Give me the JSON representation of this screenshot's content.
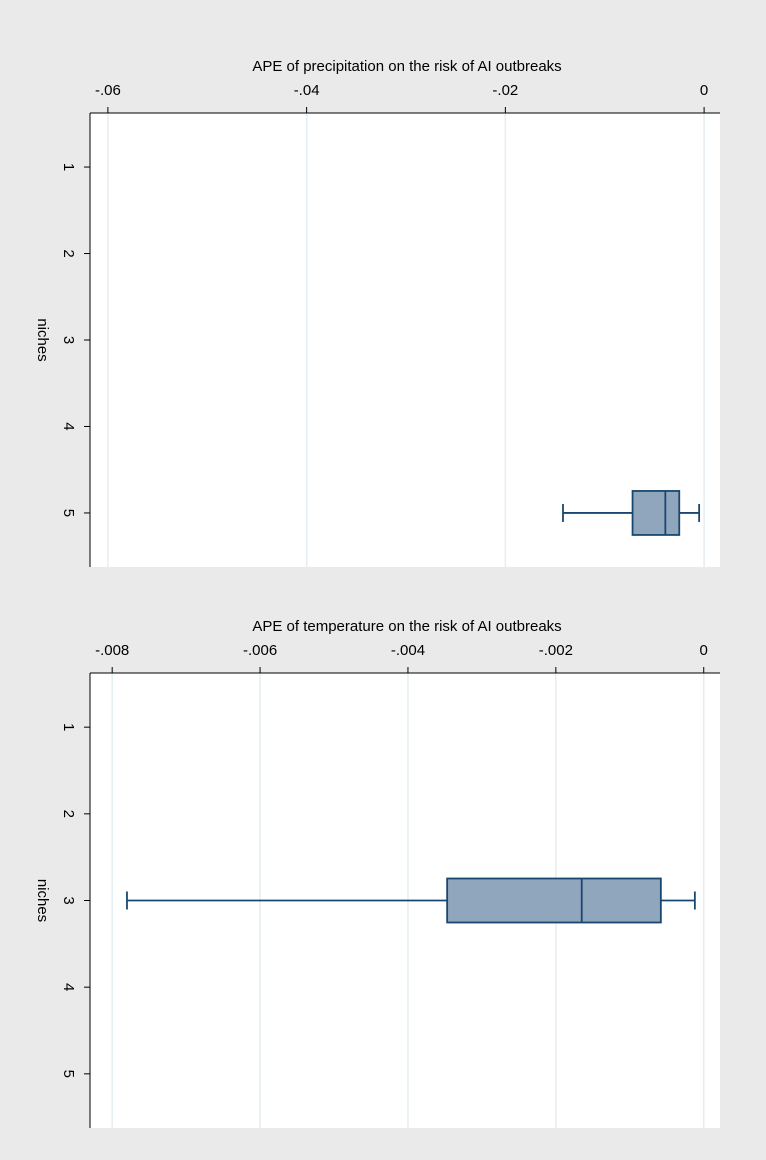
{
  "chart_data": [
    {
      "type": "box",
      "title": "APE of precipitation on the risk of AI outbreaks",
      "ylabel": "niches",
      "categories": [
        "1",
        "2",
        "3",
        "4",
        "5"
      ],
      "boxes": [
        null,
        null,
        null,
        null,
        {
          "whisker_low": -0.0142,
          "q1": -0.0072,
          "median": -0.0039,
          "q3": -0.0025,
          "whisker_high": -0.0005
        }
      ],
      "fill": "#90a6bd",
      "stroke": "#1a476f",
      "xlim": [
        -0.0618,
        0.0016
      ],
      "xticks": [
        {
          "value": -0.06,
          "label": "-.06"
        },
        {
          "value": -0.04,
          "label": "-.04"
        },
        {
          "value": -0.02,
          "label": "-.02"
        },
        0
      ],
      "grid": true
    },
    {
      "type": "box",
      "title": "APE of temperature on the risk of AI outbreaks",
      "ylabel": "niches",
      "categories": [
        "1",
        "2",
        "3",
        "4",
        "5"
      ],
      "boxes": [
        null,
        null,
        {
          "whisker_low": -0.0078,
          "q1": -0.00347,
          "median": -0.00165,
          "q3": -0.00058,
          "whisker_high": -0.00012
        },
        null,
        null
      ],
      "fill": "#90a6bd",
      "stroke": "#1a476f",
      "xlim": [
        -0.0083,
        0.00022
      ],
      "xticks": [
        {
          "value": -0.008,
          "label": "-.008"
        },
        {
          "value": -0.006,
          "label": "-.006"
        },
        {
          "value": -0.004,
          "label": "-.004"
        },
        {
          "value": -0.002,
          "label": "-.002"
        },
        0
      ],
      "grid": true
    }
  ]
}
